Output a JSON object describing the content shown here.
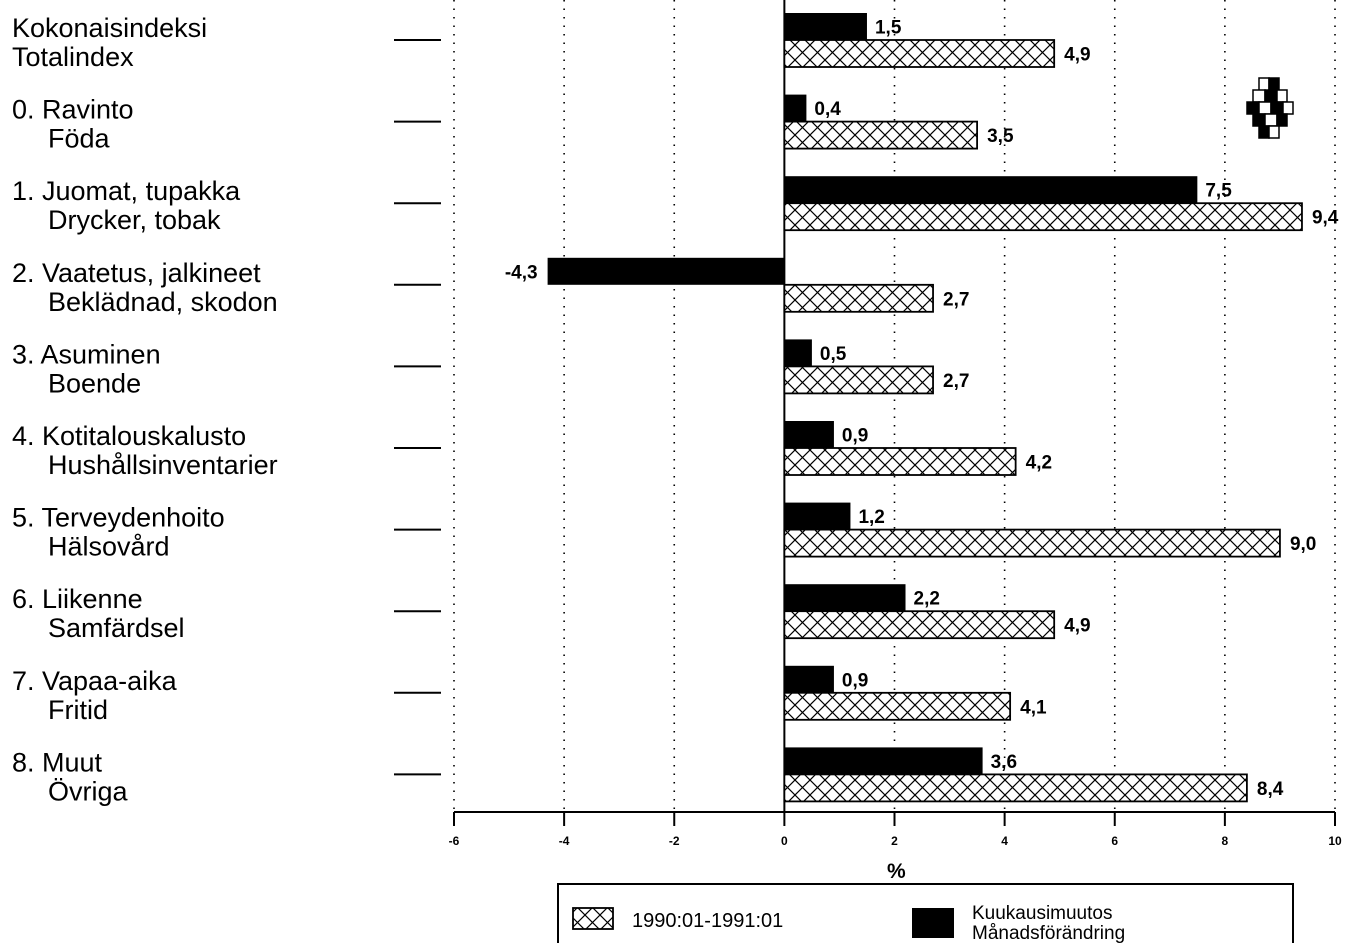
{
  "chart_data": {
    "type": "bar",
    "orientation": "horizontal",
    "categories": [
      {
        "line1": "Kokonaisindeksi",
        "line2": "Totalindex",
        "indent": false
      },
      {
        "line1": "0. Ravinto",
        "line2": "Föda",
        "indent": true
      },
      {
        "line1": "1. Juomat, tupakka",
        "line2": "Drycker, tobak",
        "indent": true
      },
      {
        "line1": "2. Vaatetus, jalkineet",
        "line2": "Beklädnad, skodon",
        "indent": true
      },
      {
        "line1": "3. Asuminen",
        "line2": "Boende",
        "indent": true
      },
      {
        "line1": "4. Kotitalouskalusto",
        "line2": "Hushållsinventarier",
        "indent": true
      },
      {
        "line1": "5. Terveydenhoito",
        "line2": "Hälsovård",
        "indent": true
      },
      {
        "line1": "6. Liikenne",
        "line2": "Samfärdsel",
        "indent": true
      },
      {
        "line1": "7. Vapaa-aika",
        "line2": "Fritid",
        "indent": true
      },
      {
        "line1": "8. Muut",
        "line2": "Övriga",
        "indent": true
      }
    ],
    "series": [
      {
        "name": "Kuukausimuutos / Månadsförändring",
        "pattern": "solid",
        "color": "#000000",
        "values": [
          1.5,
          0.4,
          7.5,
          -4.3,
          0.5,
          0.9,
          1.2,
          2.2,
          0.9,
          3.6
        ],
        "labels": [
          "1,5",
          "0,4",
          "7,5",
          "-4,3",
          "0,5",
          "0,9",
          "1,2",
          "2,2",
          "0,9",
          "3,6"
        ]
      },
      {
        "name": "1990:01-1991:01",
        "pattern": "crosshatch",
        "color": "#000000",
        "values": [
          4.9,
          3.5,
          9.4,
          2.7,
          2.7,
          4.2,
          9.0,
          4.9,
          4.1,
          8.4
        ],
        "labels": [
          "4,9",
          "3,5",
          "9,4",
          "2,7",
          "2,7",
          "4,2",
          "9,0",
          "4,9",
          "4,1",
          "8,4"
        ]
      }
    ],
    "xlim": [
      -6,
      10
    ],
    "xticks": [
      "-6",
      "-4",
      "-2",
      "0",
      "2",
      "4",
      "6",
      "8",
      "10"
    ],
    "xlabel": "%",
    "grid": "vertical dotted",
    "legend": {
      "position": "bottom",
      "items": [
        {
          "pattern": "crosshatch",
          "line1": "1990:01-1991:01",
          "line2": ""
        },
        {
          "pattern": "solid",
          "line1": "Kuukausimuutos",
          "line2": "Månadsförändring"
        }
      ]
    }
  },
  "logo": {
    "name": "statistics-logo-icon"
  }
}
